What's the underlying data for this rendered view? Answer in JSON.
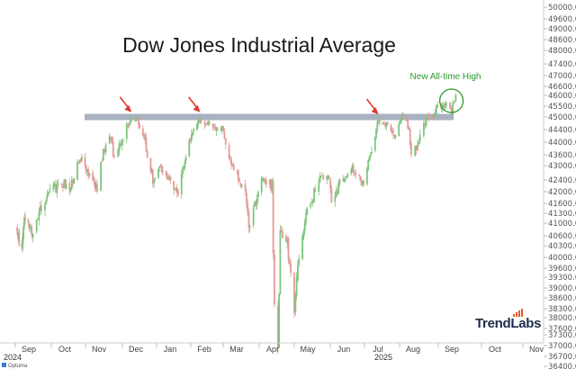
{
  "chart_data": {
    "type": "candlestick",
    "title": "Dow Jones Industrial Average",
    "annotation": "New All-time High",
    "brand": "TrendLabs",
    "footer_brand": "Optuma",
    "year_labels": [
      "2024",
      "2025"
    ],
    "x_ticks": [
      "Sep",
      "Oct",
      "Nov",
      "Dec",
      "Jan",
      "Feb",
      "Mar",
      "Apr",
      "May",
      "Jun",
      "Jul",
      "Aug",
      "Sep",
      "Oct",
      "Nov"
    ],
    "y_ticks": [
      "50000.00",
      "49600.00",
      "49000.00",
      "48600.00",
      "48000.00",
      "47400.00",
      "47000.00",
      "46600.00",
      "46000.00",
      "45500.00",
      "45000.00",
      "44400.00",
      "44000.00",
      "43600.00",
      "43000.00",
      "42400.00",
      "42000.00",
      "41600.00",
      "41300.00",
      "41000.00",
      "40600.00",
      "40300.00",
      "40000.00",
      "39600.00",
      "39300.00",
      "39000.00",
      "38600.00",
      "38300.00",
      "38000.00",
      "37600.00",
      "37300.00",
      "37000.00",
      "36700.00",
      "36400.00"
    ],
    "resistance_level": 45000,
    "price_path": [
      [
        "2024-08-20",
        40800
      ],
      [
        "2024-08-25",
        40200
      ],
      [
        "2024-08-30",
        41200
      ],
      [
        "2024-09-05",
        40700
      ],
      [
        "2024-09-12",
        41500
      ],
      [
        "2024-09-20",
        42000
      ],
      [
        "2024-09-30",
        42300
      ],
      [
        "2024-10-07",
        42000
      ],
      [
        "2024-10-14",
        43000
      ],
      [
        "2024-10-18",
        43400
      ],
      [
        "2024-10-25",
        42500
      ],
      [
        "2024-11-01",
        42100
      ],
      [
        "2024-11-06",
        43700
      ],
      [
        "2024-11-11",
        44200
      ],
      [
        "2024-11-15",
        43500
      ],
      [
        "2024-11-22",
        44200
      ],
      [
        "2024-11-29",
        45000
      ],
      [
        "2024-12-04",
        44900
      ],
      [
        "2024-12-10",
        44200
      ],
      [
        "2024-12-18",
        42400
      ],
      [
        "2024-12-24",
        42900
      ],
      [
        "2024-12-31",
        42500
      ],
      [
        "2025-01-10",
        41950
      ],
      [
        "2025-01-16",
        43300
      ],
      [
        "2025-01-24",
        44600
      ],
      [
        "2025-01-30",
        44900
      ],
      [
        "2025-02-05",
        44700
      ],
      [
        "2025-02-11",
        44600
      ],
      [
        "2025-02-18",
        44400
      ],
      [
        "2025-02-24",
        43400
      ],
      [
        "2025-03-04",
        42500
      ],
      [
        "2025-03-10",
        41900
      ],
      [
        "2025-03-13",
        40800
      ],
      [
        "2025-03-20",
        41900
      ],
      [
        "2025-03-26",
        42500
      ],
      [
        "2025-04-02",
        42200
      ],
      [
        "2025-04-04",
        38300
      ],
      [
        "2025-04-07",
        36900
      ],
      [
        "2025-04-09",
        40600
      ],
      [
        "2025-04-15",
        40400
      ],
      [
        "2025-04-21",
        38200
      ],
      [
        "2025-04-25",
        40100
      ],
      [
        "2025-05-02",
        41300
      ],
      [
        "2025-05-12",
        42400
      ],
      [
        "2025-05-20",
        42700
      ],
      [
        "2025-05-23",
        41700
      ],
      [
        "2025-05-30",
        42300
      ],
      [
        "2025-06-10",
        42900
      ],
      [
        "2025-06-20",
        42200
      ],
      [
        "2025-06-27",
        43800
      ],
      [
        "2025-07-03",
        44800
      ],
      [
        "2025-07-10",
        44700
      ],
      [
        "2025-07-18",
        44300
      ],
      [
        "2025-07-23",
        45000
      ],
      [
        "2025-07-29",
        44600
      ],
      [
        "2025-08-01",
        43600
      ],
      [
        "2025-08-07",
        44000
      ],
      [
        "2025-08-13",
        44900
      ],
      [
        "2025-08-18",
        44900
      ],
      [
        "2025-08-22",
        45600
      ],
      [
        "2025-08-26",
        45400
      ],
      [
        "2025-08-29",
        45600
      ],
      [
        "2025-09-02",
        45300
      ],
      [
        "2025-09-05",
        46100
      ]
    ]
  },
  "colors": {
    "up": "#7dc47d",
    "down": "#e49a9a",
    "band": "#a9b1c1",
    "arrow": "#e03a2f",
    "annotation": "#2e9a2e",
    "brand_text": "#1b2b4a",
    "brand_bars": "#e25a2a"
  }
}
